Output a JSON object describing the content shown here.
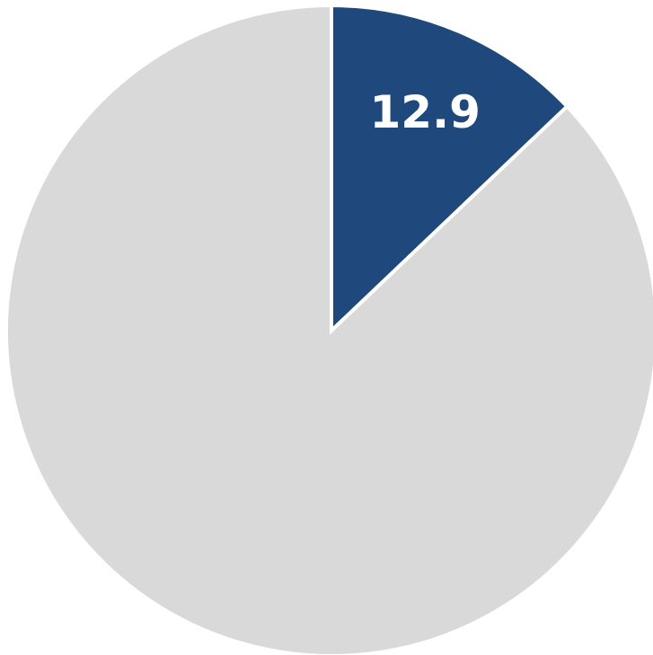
{
  "chart_data": {
    "type": "pie",
    "title": "",
    "legend": "none",
    "start_angle": "12 o'clock",
    "direction": "clockwise",
    "slices": [
      {
        "value": 12.9,
        "label": "12.9",
        "color": "#1f497d",
        "show_label": true
      },
      {
        "value": 87.1,
        "label": "",
        "color": "#d9d9d9",
        "show_label": false
      }
    ]
  }
}
